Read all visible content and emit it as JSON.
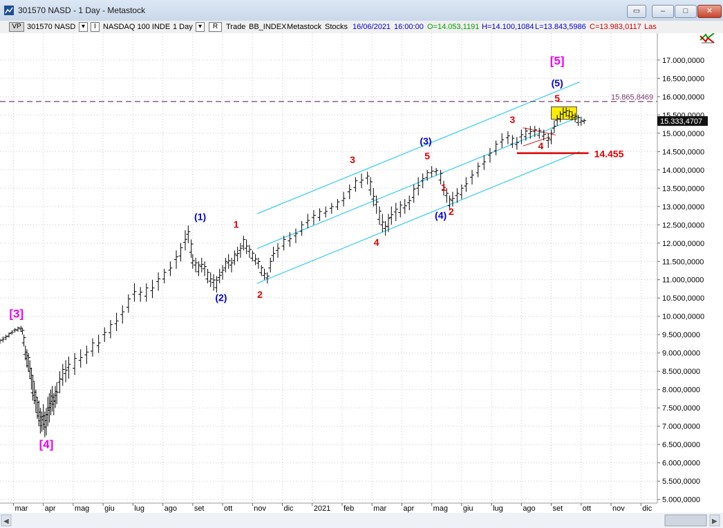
{
  "window": {
    "title": "301570 NASD - 1 Day - Metastock"
  },
  "toolbar": {
    "vp": "VP",
    "symbol": "301570 NASD",
    "dropdown_glyph": "▾",
    "frame_glyph": "I",
    "security_name": "NASDAQ 100 INDE",
    "period": "1 Day",
    "r_label": "R",
    "trade_label": "Trade",
    "source": "BB_INDEX",
    "provider": "Metastock",
    "category": "Stocks",
    "datetime": "16/06/2021",
    "time": "16:00:00",
    "open": "O=14.053,1191",
    "high": "H=14.100,1084",
    "low": "L=13.843,5986",
    "close": "C=13.983,0117",
    "last": "Las",
    "colors": {
      "open": "#00a000",
      "high": "#0000cc",
      "low": "#0000cc",
      "close": "#cc0000",
      "date": "#0000cc"
    }
  },
  "chart_data": {
    "type": "ohlc",
    "title": "",
    "xlabel": "",
    "ylabel": "",
    "x_ticks": [
      "mar",
      "apr",
      "mag",
      "giu",
      "lug",
      "ago",
      "set",
      "ott",
      "nov",
      "dic",
      "2021",
      "feb",
      "mar",
      "apr",
      "mag",
      "giu",
      "lug",
      "ago",
      "set",
      "ott",
      "nov",
      "dic"
    ],
    "y_ticks": [
      "17.000,0000",
      "16.500,0000",
      "16.000,0000",
      "15.500,0000",
      "15.000,0000",
      "14.500,0000",
      "14.000,0000",
      "13.500,0000",
      "13.000,0000",
      "12.500,0000",
      "12.000,0000",
      "11.500,0000",
      "11.000,0000",
      "10.500,0000",
      "10.000,0000",
      "9.500,0000",
      "9.000,0000",
      "8.500,0000",
      "8.000,0000",
      "7.500,0000",
      "7.000,0000",
      "6.500,0000",
      "6.000,0000",
      "5.500,0000",
      "5.000,0000"
    ],
    "y_tick_values": [
      17000,
      16500,
      16000,
      15500,
      15000,
      14500,
      14000,
      13500,
      13000,
      12500,
      12000,
      11500,
      11000,
      10500,
      10000,
      9500,
      9000,
      8500,
      8000,
      7500,
      7000,
      6500,
      6000,
      5500,
      5000
    ],
    "ylim": [
      4900,
      17600
    ],
    "xlim": [
      0,
      22
    ],
    "grid": true,
    "anchors": [
      [
        0.0,
        9300
      ],
      [
        0.35,
        9500
      ],
      [
        0.75,
        9650
      ],
      [
        0.85,
        9300
      ],
      [
        1.05,
        8400
      ],
      [
        1.3,
        7400
      ],
      [
        1.55,
        6900
      ],
      [
        1.9,
        7700
      ],
      [
        2.2,
        8300
      ],
      [
        2.7,
        8800
      ],
      [
        3.2,
        9200
      ],
      [
        3.7,
        9700
      ],
      [
        4.2,
        10200
      ],
      [
        4.5,
        10800
      ],
      [
        5.0,
        10700
      ],
      [
        5.5,
        11100
      ],
      [
        6.0,
        11600
      ],
      [
        6.3,
        12300
      ],
      [
        6.45,
        11400
      ],
      [
        6.8,
        11300
      ],
      [
        7.25,
        10900
      ],
      [
        7.6,
        11400
      ],
      [
        8.0,
        11600
      ],
      [
        8.25,
        11950
      ],
      [
        8.55,
        11600
      ],
      [
        8.9,
        11100
      ],
      [
        9.2,
        11700
      ],
      [
        9.7,
        12100
      ],
      [
        10.3,
        12600
      ],
      [
        10.9,
        12800
      ],
      [
        11.5,
        13100
      ],
      [
        12.0,
        13600
      ],
      [
        12.35,
        13700
      ],
      [
        12.55,
        13100
      ],
      [
        12.9,
        12300
      ],
      [
        13.3,
        12800
      ],
      [
        13.7,
        12900
      ],
      [
        14.05,
        13600
      ],
      [
        14.4,
        13900
      ],
      [
        14.65,
        13950
      ],
      [
        14.9,
        13300
      ],
      [
        15.1,
        13000
      ],
      [
        15.35,
        13300
      ],
      [
        15.8,
        13700
      ],
      [
        16.3,
        14100
      ],
      [
        16.7,
        14600
      ],
      [
        17.0,
        14900
      ],
      [
        17.3,
        14700
      ],
      [
        17.6,
        15000
      ],
      [
        18.0,
        15050
      ],
      [
        18.25,
        14950
      ],
      [
        18.4,
        14800
      ],
      [
        18.65,
        15300
      ],
      [
        18.85,
        15500
      ],
      [
        19.0,
        15600
      ],
      [
        19.25,
        15500
      ],
      [
        19.45,
        15350
      ],
      [
        19.55,
        15330
      ]
    ],
    "price_bars": [
      [
        0.0,
        9250,
        9380
      ],
      [
        0.1,
        9290,
        9450
      ],
      [
        0.2,
        9350,
        9500
      ],
      [
        0.3,
        9420,
        9560
      ],
      [
        0.4,
        9500,
        9620
      ],
      [
        0.5,
        9560,
        9680
      ],
      [
        0.6,
        9580,
        9720
      ],
      [
        0.7,
        9600,
        9740
      ],
      [
        0.75,
        9500,
        9680
      ],
      [
        0.8,
        9180,
        9500
      ],
      [
        0.85,
        8800,
        9200
      ],
      [
        0.9,
        8600,
        9100
      ],
      [
        0.95,
        8500,
        9000
      ],
      [
        1.0,
        8300,
        8800
      ],
      [
        1.05,
        8000,
        8600
      ],
      [
        1.1,
        7700,
        8400
      ],
      [
        1.15,
        7600,
        8200
      ],
      [
        1.2,
        7400,
        8000
      ],
      [
        1.25,
        7200,
        7800
      ],
      [
        1.3,
        7000,
        7700
      ],
      [
        1.35,
        6800,
        7500
      ],
      [
        1.4,
        6850,
        7400
      ],
      [
        1.45,
        6900,
        7600
      ],
      [
        1.5,
        6700,
        7400
      ],
      [
        1.55,
        6750,
        7500
      ],
      [
        1.6,
        7000,
        7800
      ],
      [
        1.65,
        7100,
        7900
      ],
      [
        1.7,
        7300,
        8000
      ],
      [
        1.75,
        7400,
        8100
      ],
      [
        1.8,
        7300,
        7900
      ],
      [
        1.85,
        7500,
        8100
      ],
      [
        1.9,
        7600,
        8200
      ],
      [
        2.0,
        7900,
        8500
      ],
      [
        2.1,
        8100,
        8700
      ],
      [
        2.2,
        8200,
        8800
      ],
      [
        2.3,
        8300,
        8900
      ],
      [
        2.5,
        8400,
        9000
      ],
      [
        2.7,
        8600,
        9100
      ],
      [
        2.9,
        8700,
        9200
      ],
      [
        3.1,
        8900,
        9400
      ],
      [
        3.3,
        9000,
        9500
      ],
      [
        3.5,
        9300,
        9700
      ],
      [
        3.7,
        9400,
        9900
      ],
      [
        3.9,
        9600,
        10100
      ],
      [
        4.1,
        9800,
        10300
      ],
      [
        4.3,
        10100,
        10600
      ],
      [
        4.5,
        10400,
        10900
      ],
      [
        4.7,
        10400,
        10800
      ],
      [
        4.9,
        10400,
        10900
      ],
      [
        5.1,
        10500,
        11000
      ],
      [
        5.3,
        10700,
        11200
      ],
      [
        5.5,
        10900,
        11300
      ],
      [
        5.7,
        11100,
        11500
      ],
      [
        5.9,
        11300,
        11800
      ],
      [
        6.05,
        11500,
        12000
      ],
      [
        6.2,
        11800,
        12350
      ],
      [
        6.3,
        12000,
        12480
      ],
      [
        6.4,
        11600,
        12100
      ],
      [
        6.45,
        11300,
        11700
      ],
      [
        6.55,
        11200,
        11600
      ],
      [
        6.65,
        11100,
        11500
      ],
      [
        6.75,
        11200,
        11600
      ],
      [
        6.85,
        11100,
        11500
      ],
      [
        6.95,
        10900,
        11300
      ],
      [
        7.05,
        10800,
        11200
      ],
      [
        7.15,
        10700,
        11150
      ],
      [
        7.25,
        10650,
        11100
      ],
      [
        7.35,
        10900,
        11300
      ],
      [
        7.45,
        11000,
        11400
      ],
      [
        7.55,
        11200,
        11600
      ],
      [
        7.65,
        11300,
        11700
      ],
      [
        7.75,
        11200,
        11600
      ],
      [
        7.85,
        11400,
        11800
      ],
      [
        7.95,
        11500,
        11900
      ],
      [
        8.05,
        11600,
        12000
      ],
      [
        8.15,
        11800,
        12200
      ],
      [
        8.25,
        11700,
        12100
      ],
      [
        8.35,
        11600,
        11950
      ],
      [
        8.45,
        11500,
        11800
      ],
      [
        8.55,
        11400,
        11700
      ],
      [
        8.65,
        11300,
        11600
      ],
      [
        8.75,
        11100,
        11400
      ],
      [
        8.85,
        11000,
        11300
      ],
      [
        8.95,
        10900,
        11200
      ],
      [
        9.05,
        11200,
        11600
      ],
      [
        9.15,
        11500,
        11900
      ],
      [
        9.3,
        11600,
        12000
      ],
      [
        9.5,
        11800,
        12200
      ],
      [
        9.7,
        11900,
        12300
      ],
      [
        9.9,
        12000,
        12400
      ],
      [
        10.1,
        12200,
        12600
      ],
      [
        10.3,
        12400,
        12800
      ],
      [
        10.5,
        12500,
        12900
      ],
      [
        10.7,
        12600,
        12950
      ],
      [
        10.9,
        12700,
        13000
      ],
      [
        11.1,
        12800,
        13100
      ],
      [
        11.3,
        12900,
        13200
      ],
      [
        11.5,
        13000,
        13400
      ],
      [
        11.7,
        13200,
        13600
      ],
      [
        11.9,
        13400,
        13800
      ],
      [
        12.1,
        13500,
        13900
      ],
      [
        12.3,
        13600,
        13950
      ],
      [
        12.4,
        13300,
        13800
      ],
      [
        12.5,
        13000,
        13500
      ],
      [
        12.6,
        12800,
        13300
      ],
      [
        12.7,
        12500,
        13000
      ],
      [
        12.8,
        12300,
        12800
      ],
      [
        12.9,
        12200,
        12600
      ],
      [
        13.0,
        12300,
        12800
      ],
      [
        13.1,
        12500,
        13000
      ],
      [
        13.25,
        12600,
        13100
      ],
      [
        13.4,
        12700,
        13150
      ],
      [
        13.55,
        12800,
        13200
      ],
      [
        13.7,
        12900,
        13300
      ],
      [
        13.85,
        13100,
        13600
      ],
      [
        14.0,
        13300,
        13800
      ],
      [
        14.15,
        13500,
        13900
      ],
      [
        14.3,
        13700,
        14000
      ],
      [
        14.45,
        13800,
        14100
      ],
      [
        14.6,
        13850,
        14050
      ],
      [
        14.75,
        13600,
        14000
      ],
      [
        14.85,
        13300,
        13700
      ],
      [
        14.95,
        13100,
        13500
      ],
      [
        15.05,
        12900,
        13300
      ],
      [
        15.15,
        13000,
        13400
      ],
      [
        15.3,
        13100,
        13500
      ],
      [
        15.45,
        13200,
        13600
      ],
      [
        15.6,
        13400,
        13800
      ],
      [
        15.8,
        13600,
        14000
      ],
      [
        16.0,
        13800,
        14200
      ],
      [
        16.2,
        14000,
        14400
      ],
      [
        16.4,
        14200,
        14600
      ],
      [
        16.6,
        14400,
        14800
      ],
      [
        16.8,
        14600,
        15000
      ],
      [
        17.0,
        14700,
        15050
      ],
      [
        17.15,
        14600,
        14950
      ],
      [
        17.3,
        14550,
        14900
      ],
      [
        17.45,
        14700,
        15100
      ],
      [
        17.6,
        14800,
        15150
      ],
      [
        17.75,
        14850,
        15200
      ],
      [
        17.9,
        14900,
        15200
      ],
      [
        18.05,
        14850,
        15150
      ],
      [
        18.2,
        14800,
        15100
      ],
      [
        18.35,
        14600,
        15000
      ],
      [
        18.45,
        14700,
        15100
      ],
      [
        18.55,
        15000,
        15350
      ],
      [
        18.65,
        15200,
        15500
      ],
      [
        18.75,
        15300,
        15600
      ],
      [
        18.85,
        15400,
        15700
      ],
      [
        18.95,
        15450,
        15700
      ],
      [
        19.05,
        15400,
        15650
      ],
      [
        19.15,
        15350,
        15600
      ],
      [
        19.25,
        15300,
        15550
      ],
      [
        19.35,
        15200,
        15500
      ],
      [
        19.45,
        15200,
        15450
      ],
      [
        19.55,
        15250,
        15400
      ]
    ],
    "current_price": "15.333,4707",
    "current_price_value": 15333,
    "resistance_level": "15.865,8469",
    "resistance_value": 15866,
    "support_level": "14.455",
    "support_value": 14455,
    "support_segment": [
      17.3,
      19.7
    ],
    "target_box": {
      "x_from": 18.45,
      "x_to": 19.3,
      "y_from": 15380,
      "y_to": 15720
    },
    "channels": [
      {
        "x1": 8.6,
        "y1": 12800,
        "x2": 19.4,
        "y2": 16400
      },
      {
        "x1": 8.6,
        "y1": 11850,
        "x2": 19.4,
        "y2": 15450
      },
      {
        "x1": 8.6,
        "y1": 10900,
        "x2": 19.4,
        "y2": 14500
      }
    ],
    "triangle": [
      {
        "x1": 17.5,
        "y1": 15150,
        "x2": 18.6,
        "y2": 14950
      },
      {
        "x1": 17.5,
        "y1": 14650,
        "x2": 18.4,
        "y2": 14900
      }
    ],
    "wave_labels": [
      {
        "text": "[3]",
        "x": 0.55,
        "y": 9970,
        "color": "#ee00ee",
        "size": 17
      },
      {
        "text": "[4]",
        "x": 1.55,
        "y": 6400,
        "color": "#ee00ee",
        "size": 17
      },
      {
        "text": "[5]",
        "x": 18.65,
        "y": 16870,
        "color": "#ee00ee",
        "size": 17
      },
      {
        "text": "(1)",
        "x": 6.7,
        "y": 12630,
        "color": "#0000cc",
        "size": 14
      },
      {
        "text": "(2)",
        "x": 7.4,
        "y": 10420,
        "color": "#0000cc",
        "size": 14
      },
      {
        "text": "(3)",
        "x": 14.25,
        "y": 14690,
        "color": "#0000cc",
        "size": 14
      },
      {
        "text": "(4)",
        "x": 14.75,
        "y": 12670,
        "color": "#0000cc",
        "size": 14
      },
      {
        "text": "(5)",
        "x": 18.65,
        "y": 16280,
        "color": "#0000cc",
        "size": 14
      },
      {
        "text": "1",
        "x": 7.9,
        "y": 12420,
        "color": "#e00000",
        "size": 14
      },
      {
        "text": "2",
        "x": 8.7,
        "y": 10500,
        "color": "#e00000",
        "size": 14
      },
      {
        "text": "3",
        "x": 11.8,
        "y": 14180,
        "color": "#e00000",
        "size": 14
      },
      {
        "text": "4",
        "x": 12.6,
        "y": 11930,
        "color": "#e00000",
        "size": 14
      },
      {
        "text": "5",
        "x": 14.3,
        "y": 14290,
        "color": "#e00000",
        "size": 14
      },
      {
        "text": "1",
        "x": 14.85,
        "y": 13430,
        "color": "#e00000",
        "size": 14
      },
      {
        "text": "2",
        "x": 15.1,
        "y": 12770,
        "color": "#e00000",
        "size": 14
      },
      {
        "text": "3",
        "x": 17.15,
        "y": 15280,
        "color": "#e00000",
        "size": 14
      },
      {
        "text": "4",
        "x": 18.1,
        "y": 14560,
        "color": "#e00000",
        "size": 14
      },
      {
        "text": "5",
        "x": 18.65,
        "y": 15860,
        "color": "#e00000",
        "size": 14
      }
    ]
  }
}
